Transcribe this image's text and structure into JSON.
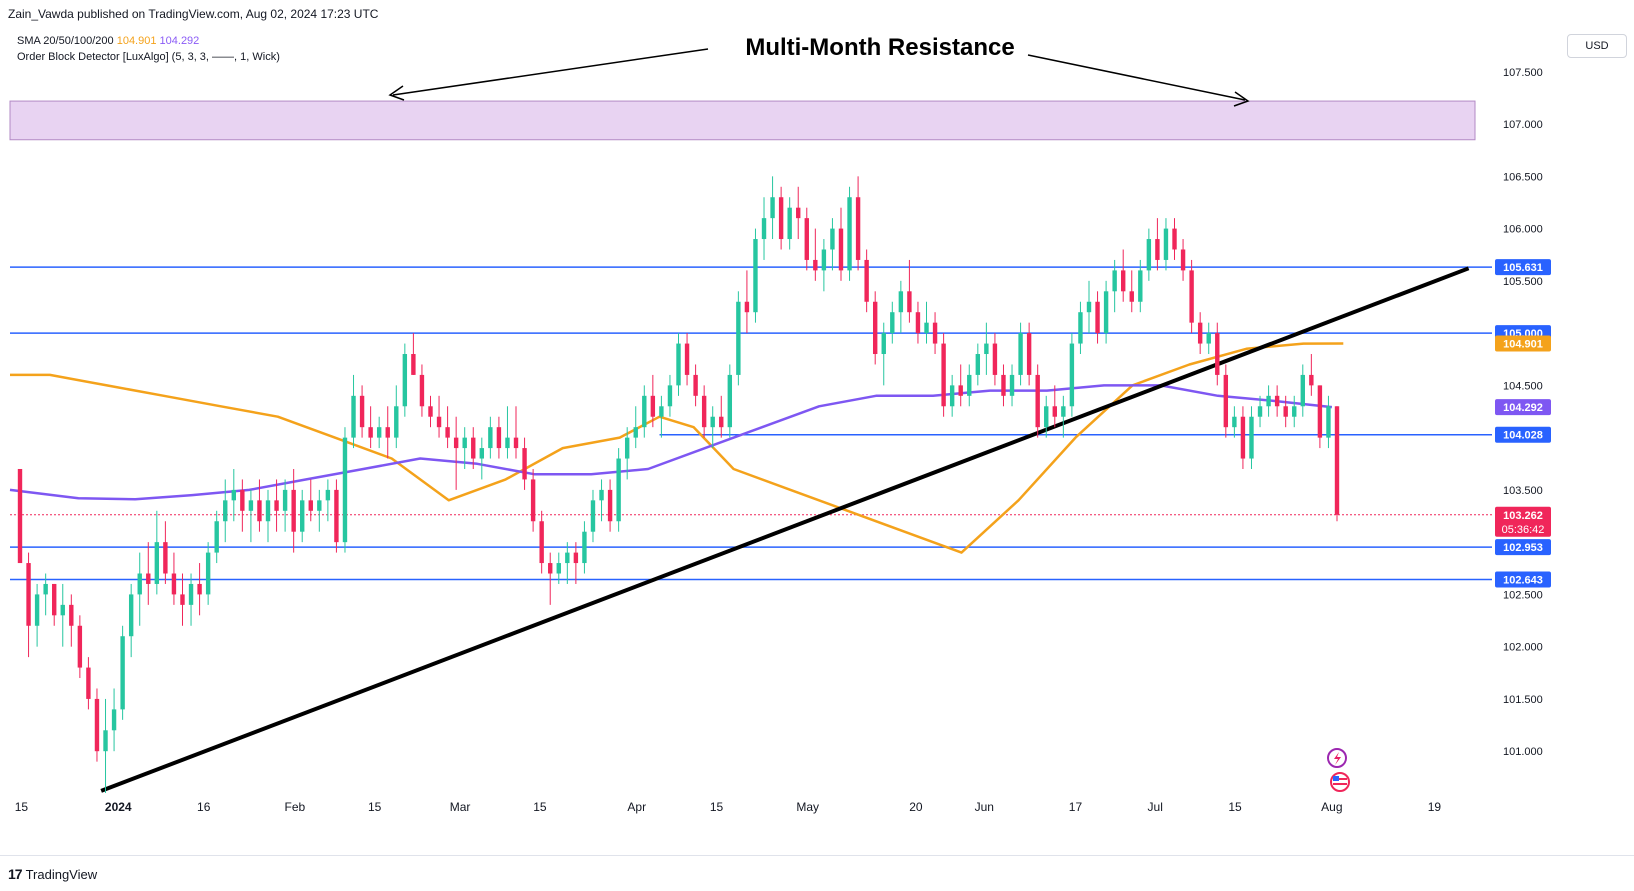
{
  "header": {
    "publisher_line": "Zain_Vawda published on TradingView.com, Aug 02, 2024 17:23 UTC"
  },
  "legend": {
    "sma_label": "SMA 20/50/100/200",
    "sma_value_1": "104.901",
    "sma_value_2": "104.292",
    "order_block_label": "Order Block Detector [LuxAlgo] (5, 3, 3, ——, 1, Wick)"
  },
  "currency_button": "USD",
  "footer": {
    "brand": "TradingView",
    "logo_glyph": "17"
  },
  "colors": {
    "up": "#26c6a0",
    "down": "#f0265a",
    "horizontal": "#2962ff",
    "sma_orange": "#f4a21b",
    "sma_purple": "#7e57f2",
    "zone_fill": "#e8d3f2",
    "zone_stroke": "#b28ac4",
    "trendline": "#000000",
    "price_dotted": "#f0265a"
  },
  "chart_data": {
    "type": "candlestick",
    "title": "Multi-Month Resistance",
    "ylim": [
      100.6,
      107.9
    ],
    "y_ticks": [
      "107.500",
      "107.000",
      "106.500",
      "106.000",
      "105.500",
      "104.500",
      "103.500",
      "102.500",
      "102.000",
      "101.500",
      "101.000"
    ],
    "y_tick_values": [
      107.5,
      107.0,
      106.5,
      106.0,
      105.5,
      104.5,
      103.5,
      102.5,
      102.0,
      101.5,
      101.0
    ],
    "x_ticks": [
      {
        "label": "15",
        "day": 0
      },
      {
        "label": "2024",
        "day": 17
      },
      {
        "label": "16",
        "day": 32
      },
      {
        "label": "Feb",
        "day": 48
      },
      {
        "label": "15",
        "day": 62
      },
      {
        "label": "Mar",
        "day": 77
      },
      {
        "label": "15",
        "day": 91
      },
      {
        "label": "Apr",
        "day": 108
      },
      {
        "label": "15",
        "day": 122
      },
      {
        "label": "May",
        "day": 138
      },
      {
        "label": "20",
        "day": 157
      },
      {
        "label": "Jun",
        "day": 169
      },
      {
        "label": "17",
        "day": 185
      },
      {
        "label": "Jul",
        "day": 199
      },
      {
        "label": "15",
        "day": 213
      },
      {
        "label": "Aug",
        "day": 230
      },
      {
        "label": "19",
        "day": 248
      }
    ],
    "x_range_days": [
      -2,
      256
    ],
    "resistance_zone": {
      "low": 106.85,
      "high": 107.22,
      "label": "Multi-Month Resistance"
    },
    "horizontal_levels": [
      {
        "value": 105.631,
        "label": "105.631",
        "from_day": -2
      },
      {
        "value": 105.0,
        "label": "105.000",
        "from_day": -2
      },
      {
        "value": 104.028,
        "label": "104.028",
        "from_day": 112
      },
      {
        "value": 102.953,
        "label": "102.953",
        "from_day": -2
      },
      {
        "value": 102.643,
        "label": "102.643",
        "from_day": -2
      }
    ],
    "price_labels": [
      {
        "value": 104.901,
        "label": "104.901",
        "color": "#f4a21b"
      },
      {
        "value": 104.292,
        "label": "104.292",
        "color": "#7e57f2"
      },
      {
        "value": 103.262,
        "label": "103.262",
        "sub": "05:36:42",
        "color": "#f0265a"
      }
    ],
    "trendline": {
      "start": {
        "day": 14,
        "value": 100.62
      },
      "end": {
        "day": 254,
        "value": 105.62
      }
    },
    "sma_orange": {
      "days": [
        -2,
        5,
        15,
        25,
        35,
        45,
        55,
        65,
        75,
        85,
        95,
        105,
        112,
        118,
        125,
        135,
        145,
        155,
        165,
        175,
        185,
        195,
        205,
        215,
        225,
        232
      ],
      "values": [
        104.6,
        104.6,
        104.5,
        104.4,
        104.3,
        104.2,
        104.0,
        103.8,
        103.4,
        103.6,
        103.9,
        104.0,
        104.2,
        104.1,
        103.7,
        103.5,
        103.3,
        103.1,
        102.9,
        103.4,
        104.0,
        104.5,
        104.7,
        104.85,
        104.9,
        104.901
      ]
    },
    "sma_purple": {
      "days": [
        -2,
        10,
        20,
        30,
        40,
        50,
        60,
        70,
        80,
        90,
        100,
        110,
        120,
        130,
        140,
        150,
        160,
        170,
        180,
        190,
        200,
        210,
        220,
        230
      ],
      "values": [
        103.5,
        103.42,
        103.41,
        103.45,
        103.5,
        103.6,
        103.7,
        103.8,
        103.75,
        103.65,
        103.65,
        103.7,
        103.9,
        104.1,
        104.3,
        104.4,
        104.4,
        104.45,
        104.45,
        104.5,
        104.5,
        104.4,
        104.35,
        104.292
      ]
    },
    "candles": [
      {
        "o": 103.7,
        "h": 103.7,
        "l": 102.8,
        "c": 102.8
      },
      {
        "o": 102.8,
        "h": 102.9,
        "l": 101.9,
        "c": 102.2
      },
      {
        "o": 102.2,
        "h": 102.6,
        "l": 102.0,
        "c": 102.5
      },
      {
        "o": 102.5,
        "h": 102.7,
        "l": 102.3,
        "c": 102.6
      },
      {
        "o": 102.6,
        "h": 102.6,
        "l": 102.2,
        "c": 102.3
      },
      {
        "o": 102.3,
        "h": 102.6,
        "l": 102.0,
        "c": 102.4
      },
      {
        "o": 102.4,
        "h": 102.5,
        "l": 102.0,
        "c": 102.2
      },
      {
        "o": 102.2,
        "h": 102.3,
        "l": 101.7,
        "c": 101.8
      },
      {
        "o": 101.8,
        "h": 101.9,
        "l": 101.4,
        "c": 101.5
      },
      {
        "o": 101.5,
        "h": 101.6,
        "l": 100.9,
        "c": 101.0
      },
      {
        "o": 101.0,
        "h": 101.5,
        "l": 100.6,
        "c": 101.2
      },
      {
        "o": 101.2,
        "h": 101.6,
        "l": 101.0,
        "c": 101.4
      },
      {
        "o": 101.4,
        "h": 102.2,
        "l": 101.3,
        "c": 102.1
      },
      {
        "o": 102.1,
        "h": 102.6,
        "l": 101.9,
        "c": 102.5
      },
      {
        "o": 102.5,
        "h": 102.9,
        "l": 102.2,
        "c": 102.7
      },
      {
        "o": 102.7,
        "h": 103.0,
        "l": 102.4,
        "c": 102.6
      },
      {
        "o": 102.6,
        "h": 103.3,
        "l": 102.5,
        "c": 103.0
      },
      {
        "o": 103.0,
        "h": 103.2,
        "l": 102.6,
        "c": 102.7
      },
      {
        "o": 102.7,
        "h": 102.9,
        "l": 102.4,
        "c": 102.5
      },
      {
        "o": 102.5,
        "h": 102.7,
        "l": 102.2,
        "c": 102.4
      },
      {
        "o": 102.4,
        "h": 102.7,
        "l": 102.2,
        "c": 102.6
      },
      {
        "o": 102.6,
        "h": 102.8,
        "l": 102.3,
        "c": 102.5
      },
      {
        "o": 102.5,
        "h": 103.0,
        "l": 102.4,
        "c": 102.9
      },
      {
        "o": 102.9,
        "h": 103.3,
        "l": 102.8,
        "c": 103.2
      },
      {
        "o": 103.2,
        "h": 103.6,
        "l": 103.0,
        "c": 103.4
      },
      {
        "o": 103.4,
        "h": 103.7,
        "l": 103.2,
        "c": 103.5
      },
      {
        "o": 103.5,
        "h": 103.6,
        "l": 103.1,
        "c": 103.3
      },
      {
        "o": 103.3,
        "h": 103.5,
        "l": 103.0,
        "c": 103.4
      },
      {
        "o": 103.4,
        "h": 103.6,
        "l": 103.1,
        "c": 103.2
      },
      {
        "o": 103.2,
        "h": 103.5,
        "l": 103.0,
        "c": 103.4
      },
      {
        "o": 103.4,
        "h": 103.6,
        "l": 103.1,
        "c": 103.3
      },
      {
        "o": 103.3,
        "h": 103.6,
        "l": 103.1,
        "c": 103.5
      },
      {
        "o": 103.5,
        "h": 103.7,
        "l": 102.9,
        "c": 103.1
      },
      {
        "o": 103.1,
        "h": 103.5,
        "l": 103.0,
        "c": 103.4
      },
      {
        "o": 103.4,
        "h": 103.6,
        "l": 103.2,
        "c": 103.3
      },
      {
        "o": 103.3,
        "h": 103.5,
        "l": 103.1,
        "c": 103.4
      },
      {
        "o": 103.4,
        "h": 103.6,
        "l": 103.2,
        "c": 103.5
      },
      {
        "o": 103.5,
        "h": 103.6,
        "l": 102.9,
        "c": 103.0
      },
      {
        "o": 103.0,
        "h": 104.1,
        "l": 102.9,
        "c": 104.0
      },
      {
        "o": 104.0,
        "h": 104.6,
        "l": 103.9,
        "c": 104.4
      },
      {
        "o": 104.4,
        "h": 104.5,
        "l": 104.0,
        "c": 104.1
      },
      {
        "o": 104.1,
        "h": 104.3,
        "l": 103.9,
        "c": 104.0
      },
      {
        "o": 104.0,
        "h": 104.2,
        "l": 103.9,
        "c": 104.1
      },
      {
        "o": 104.1,
        "h": 104.3,
        "l": 103.8,
        "c": 104.0
      },
      {
        "o": 104.0,
        "h": 104.5,
        "l": 103.9,
        "c": 104.3
      },
      {
        "o": 104.3,
        "h": 104.9,
        "l": 104.2,
        "c": 104.8
      },
      {
        "o": 104.8,
        "h": 105.0,
        "l": 104.6,
        "c": 104.6
      },
      {
        "o": 104.6,
        "h": 104.7,
        "l": 104.2,
        "c": 104.3
      },
      {
        "o": 104.3,
        "h": 104.4,
        "l": 104.1,
        "c": 104.2
      },
      {
        "o": 104.2,
        "h": 104.4,
        "l": 104.0,
        "c": 104.1
      },
      {
        "o": 104.1,
        "h": 104.3,
        "l": 103.9,
        "c": 104.0
      },
      {
        "o": 104.0,
        "h": 104.2,
        "l": 103.5,
        "c": 103.9
      },
      {
        "o": 103.9,
        "h": 104.1,
        "l": 103.7,
        "c": 104.0
      },
      {
        "o": 104.0,
        "h": 104.1,
        "l": 103.7,
        "c": 103.8
      },
      {
        "o": 103.8,
        "h": 104.0,
        "l": 103.6,
        "c": 103.9
      },
      {
        "o": 103.9,
        "h": 104.2,
        "l": 103.8,
        "c": 104.1
      },
      {
        "o": 104.1,
        "h": 104.2,
        "l": 103.8,
        "c": 103.9
      },
      {
        "o": 103.9,
        "h": 104.3,
        "l": 103.8,
        "c": 104.0
      },
      {
        "o": 104.0,
        "h": 104.3,
        "l": 103.8,
        "c": 103.9
      },
      {
        "o": 103.9,
        "h": 104.0,
        "l": 103.5,
        "c": 103.6
      },
      {
        "o": 103.6,
        "h": 103.7,
        "l": 103.1,
        "c": 103.2
      },
      {
        "o": 103.2,
        "h": 103.3,
        "l": 102.7,
        "c": 102.8
      },
      {
        "o": 102.8,
        "h": 102.9,
        "l": 102.4,
        "c": 102.7
      },
      {
        "o": 102.7,
        "h": 102.9,
        "l": 102.6,
        "c": 102.8
      },
      {
        "o": 102.8,
        "h": 103.0,
        "l": 102.6,
        "c": 102.9
      },
      {
        "o": 102.9,
        "h": 103.0,
        "l": 102.6,
        "c": 102.8
      },
      {
        "o": 102.8,
        "h": 103.2,
        "l": 102.7,
        "c": 103.1
      },
      {
        "o": 103.1,
        "h": 103.5,
        "l": 103.0,
        "c": 103.4
      },
      {
        "o": 103.4,
        "h": 103.6,
        "l": 103.2,
        "c": 103.5
      },
      {
        "o": 103.5,
        "h": 103.6,
        "l": 103.1,
        "c": 103.2
      },
      {
        "o": 103.2,
        "h": 103.9,
        "l": 103.1,
        "c": 103.8
      },
      {
        "o": 103.8,
        "h": 104.1,
        "l": 103.6,
        "c": 104.0
      },
      {
        "o": 104.0,
        "h": 104.3,
        "l": 103.9,
        "c": 104.1
      },
      {
        "o": 104.1,
        "h": 104.5,
        "l": 104.0,
        "c": 104.4
      },
      {
        "o": 104.4,
        "h": 104.6,
        "l": 104.1,
        "c": 104.2
      },
      {
        "o": 104.2,
        "h": 104.4,
        "l": 104.0,
        "c": 104.3
      },
      {
        "o": 104.3,
        "h": 104.6,
        "l": 104.2,
        "c": 104.5
      },
      {
        "o": 104.5,
        "h": 105.0,
        "l": 104.4,
        "c": 104.9
      },
      {
        "o": 104.9,
        "h": 105.0,
        "l": 104.5,
        "c": 104.6
      },
      {
        "o": 104.6,
        "h": 104.7,
        "l": 104.3,
        "c": 104.4
      },
      {
        "o": 104.4,
        "h": 104.5,
        "l": 104.0,
        "c": 104.1
      },
      {
        "o": 104.1,
        "h": 104.3,
        "l": 103.9,
        "c": 104.2
      },
      {
        "o": 104.2,
        "h": 104.4,
        "l": 104.0,
        "c": 104.1
      },
      {
        "o": 104.1,
        "h": 104.7,
        "l": 104.0,
        "c": 104.6
      },
      {
        "o": 104.6,
        "h": 105.4,
        "l": 104.5,
        "c": 105.3
      },
      {
        "o": 105.3,
        "h": 105.6,
        "l": 105.0,
        "c": 105.2
      },
      {
        "o": 105.2,
        "h": 106.0,
        "l": 105.1,
        "c": 105.9
      },
      {
        "o": 105.9,
        "h": 106.3,
        "l": 105.7,
        "c": 106.1
      },
      {
        "o": 106.1,
        "h": 106.5,
        "l": 105.9,
        "c": 106.3
      },
      {
        "o": 106.3,
        "h": 106.4,
        "l": 105.8,
        "c": 105.9
      },
      {
        "o": 105.9,
        "h": 106.3,
        "l": 105.8,
        "c": 106.2
      },
      {
        "o": 106.2,
        "h": 106.4,
        "l": 105.9,
        "c": 106.1
      },
      {
        "o": 106.1,
        "h": 106.2,
        "l": 105.6,
        "c": 105.7
      },
      {
        "o": 105.7,
        "h": 106.0,
        "l": 105.5,
        "c": 105.6
      },
      {
        "o": 105.6,
        "h": 105.9,
        "l": 105.4,
        "c": 105.8
      },
      {
        "o": 105.8,
        "h": 106.1,
        "l": 105.6,
        "c": 106.0
      },
      {
        "o": 106.0,
        "h": 106.2,
        "l": 105.5,
        "c": 105.6
      },
      {
        "o": 105.6,
        "h": 106.4,
        "l": 105.5,
        "c": 106.3
      },
      {
        "o": 106.3,
        "h": 106.5,
        "l": 105.6,
        "c": 105.7
      },
      {
        "o": 105.7,
        "h": 105.8,
        "l": 105.2,
        "c": 105.3
      },
      {
        "o": 105.3,
        "h": 105.4,
        "l": 104.7,
        "c": 104.8
      },
      {
        "o": 104.8,
        "h": 105.1,
        "l": 104.5,
        "c": 105.0
      },
      {
        "o": 105.0,
        "h": 105.3,
        "l": 104.9,
        "c": 105.2
      },
      {
        "o": 105.2,
        "h": 105.5,
        "l": 105.0,
        "c": 105.4
      },
      {
        "o": 105.4,
        "h": 105.7,
        "l": 105.1,
        "c": 105.2
      },
      {
        "o": 105.2,
        "h": 105.3,
        "l": 104.9,
        "c": 105.0
      },
      {
        "o": 105.0,
        "h": 105.3,
        "l": 104.9,
        "c": 105.1
      },
      {
        "o": 105.1,
        "h": 105.2,
        "l": 104.8,
        "c": 104.9
      },
      {
        "o": 104.9,
        "h": 105.0,
        "l": 104.2,
        "c": 104.3
      },
      {
        "o": 104.3,
        "h": 104.6,
        "l": 104.2,
        "c": 104.5
      },
      {
        "o": 104.5,
        "h": 104.7,
        "l": 104.3,
        "c": 104.4
      },
      {
        "o": 104.4,
        "h": 104.7,
        "l": 104.3,
        "c": 104.6
      },
      {
        "o": 104.6,
        "h": 104.9,
        "l": 104.5,
        "c": 104.8
      },
      {
        "o": 104.8,
        "h": 105.1,
        "l": 104.6,
        "c": 104.9
      },
      {
        "o": 104.9,
        "h": 105.0,
        "l": 104.5,
        "c": 104.6
      },
      {
        "o": 104.6,
        "h": 104.7,
        "l": 104.3,
        "c": 104.4
      },
      {
        "o": 104.4,
        "h": 104.7,
        "l": 104.3,
        "c": 104.6
      },
      {
        "o": 104.6,
        "h": 105.1,
        "l": 104.5,
        "c": 105.0
      },
      {
        "o": 105.0,
        "h": 105.1,
        "l": 104.5,
        "c": 104.6
      },
      {
        "o": 104.6,
        "h": 104.7,
        "l": 104.0,
        "c": 104.1
      },
      {
        "o": 104.1,
        "h": 104.4,
        "l": 104.0,
        "c": 104.3
      },
      {
        "o": 104.3,
        "h": 104.5,
        "l": 104.1,
        "c": 104.2
      },
      {
        "o": 104.2,
        "h": 104.4,
        "l": 104.0,
        "c": 104.3
      },
      {
        "o": 104.3,
        "h": 105.0,
        "l": 104.2,
        "c": 104.9
      },
      {
        "o": 104.9,
        "h": 105.3,
        "l": 104.8,
        "c": 105.2
      },
      {
        "o": 105.2,
        "h": 105.5,
        "l": 105.0,
        "c": 105.3
      },
      {
        "o": 105.3,
        "h": 105.4,
        "l": 104.9,
        "c": 105.0
      },
      {
        "o": 105.0,
        "h": 105.5,
        "l": 104.9,
        "c": 105.4
      },
      {
        "o": 105.4,
        "h": 105.7,
        "l": 105.2,
        "c": 105.6
      },
      {
        "o": 105.6,
        "h": 105.8,
        "l": 105.3,
        "c": 105.4
      },
      {
        "o": 105.4,
        "h": 105.6,
        "l": 105.2,
        "c": 105.3
      },
      {
        "o": 105.3,
        "h": 105.7,
        "l": 105.2,
        "c": 105.6
      },
      {
        "o": 105.6,
        "h": 106.0,
        "l": 105.5,
        "c": 105.9
      },
      {
        "o": 105.9,
        "h": 106.1,
        "l": 105.6,
        "c": 105.7
      },
      {
        "o": 105.7,
        "h": 106.1,
        "l": 105.6,
        "c": 106.0
      },
      {
        "o": 106.0,
        "h": 106.1,
        "l": 105.7,
        "c": 105.8
      },
      {
        "o": 105.8,
        "h": 105.9,
        "l": 105.5,
        "c": 105.6
      },
      {
        "o": 105.6,
        "h": 105.7,
        "l": 105.0,
        "c": 105.1
      },
      {
        "o": 105.1,
        "h": 105.2,
        "l": 104.8,
        "c": 104.9
      },
      {
        "o": 104.9,
        "h": 105.1,
        "l": 104.8,
        "c": 105.0
      },
      {
        "o": 105.0,
        "h": 105.1,
        "l": 104.5,
        "c": 104.6
      },
      {
        "o": 104.6,
        "h": 104.7,
        "l": 104.0,
        "c": 104.1
      },
      {
        "o": 104.1,
        "h": 104.3,
        "l": 104.0,
        "c": 104.2
      },
      {
        "o": 104.2,
        "h": 104.3,
        "l": 103.7,
        "c": 103.8
      },
      {
        "o": 103.8,
        "h": 104.3,
        "l": 103.7,
        "c": 104.2
      },
      {
        "o": 104.2,
        "h": 104.4,
        "l": 104.1,
        "c": 104.3
      },
      {
        "o": 104.3,
        "h": 104.5,
        "l": 104.2,
        "c": 104.4
      },
      {
        "o": 104.4,
        "h": 104.5,
        "l": 104.2,
        "c": 104.3
      },
      {
        "o": 104.3,
        "h": 104.4,
        "l": 104.1,
        "c": 104.2
      },
      {
        "o": 104.2,
        "h": 104.4,
        "l": 104.1,
        "c": 104.3
      },
      {
        "o": 104.3,
        "h": 104.7,
        "l": 104.2,
        "c": 104.6
      },
      {
        "o": 104.6,
        "h": 104.8,
        "l": 104.4,
        "c": 104.5
      },
      {
        "o": 104.5,
        "h": 104.5,
        "l": 103.9,
        "c": 104.0
      },
      {
        "o": 104.0,
        "h": 104.4,
        "l": 103.9,
        "c": 104.3
      },
      {
        "o": 104.3,
        "h": 104.3,
        "l": 103.2,
        "c": 103.262
      }
    ]
  }
}
